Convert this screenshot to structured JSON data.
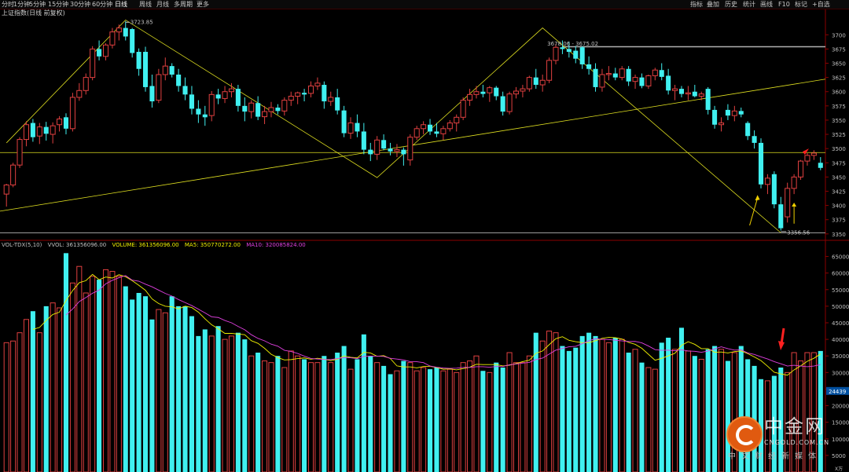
{
  "toolbar": {
    "left_items": [
      "分时",
      "1分钟",
      "5分钟",
      "15分钟",
      "30分钟",
      "60分钟",
      "日线",
      "周线",
      "月线",
      "多周期",
      "更多"
    ],
    "active_item": "日线",
    "right_items": [
      "指标",
      "叠加",
      "历史",
      "统计",
      "画线",
      "F10",
      "标记",
      "+自选"
    ]
  },
  "chart_title": "上证指数(日线 前复权)",
  "colors": {
    "up": "#e04040",
    "down": "#40f0f0",
    "ma5": "#f0f000",
    "ma10": "#e040e0",
    "trendline": "#e0e020",
    "resistance": "#b0b0b0",
    "grid": "#8b0000",
    "axis_text": "#c0c0c0",
    "arrow_red": "#ff2020",
    "arrow_yellow": "#f0d000"
  },
  "price_axis": {
    "ticks": [
      "3700",
      "3675",
      "3650",
      "3625",
      "3600",
      "3575",
      "3550",
      "3525",
      "3500",
      "3475",
      "3450",
      "3425",
      "3400",
      "3375",
      "3350"
    ],
    "range": [
      3347,
      3728
    ]
  },
  "volume_axis": {
    "ticks": [
      "65000",
      "60000",
      "55000",
      "50000",
      "45000",
      "40000",
      "35000",
      "30000",
      "25000",
      "20000",
      "15000",
      "10000",
      "5000"
    ],
    "current_label": "24439",
    "unit": "X万",
    "range": [
      0,
      67500
    ]
  },
  "annotations": {
    "high_left": "3723.85",
    "high_right": "3678.06 - 3675.02",
    "low": "3356.56"
  },
  "volume_header": {
    "indicator": "VOL-TDX(5,10)",
    "vvol": "VVOL: 361356096.00",
    "volume": "VOLUME: 361356096.00",
    "ma5": "MA5: 350770272.00",
    "ma10": "MA10: 320085824.00"
  },
  "watermark": {
    "cn": "中金网",
    "en": "CNGOLD.COM.CN",
    "sub": "中文财经新媒体"
  },
  "chart_data": {
    "type": "candlestick",
    "title": "上证指数(日线 前复权)",
    "ylim": [
      3347,
      3728
    ],
    "volume_ylim": [
      0,
      67500
    ],
    "candles": [
      {
        "o": 3420,
        "h": 3438,
        "l": 3398,
        "c": 3436,
        "v": 39000
      },
      {
        "o": 3436,
        "h": 3475,
        "l": 3432,
        "c": 3471,
        "v": 39500
      },
      {
        "o": 3471,
        "h": 3520,
        "l": 3466,
        "c": 3516,
        "v": 42000
      },
      {
        "o": 3516,
        "h": 3548,
        "l": 3504,
        "c": 3542,
        "v": 46000
      },
      {
        "o": 3545,
        "h": 3552,
        "l": 3512,
        "c": 3520,
        "v": 48500
      },
      {
        "o": 3522,
        "h": 3545,
        "l": 3508,
        "c": 3538,
        "v": 42000
      },
      {
        "o": 3538,
        "h": 3547,
        "l": 3514,
        "c": 3526,
        "v": 50000
      },
      {
        "o": 3525,
        "h": 3546,
        "l": 3509,
        "c": 3540,
        "v": 51000
      },
      {
        "o": 3542,
        "h": 3557,
        "l": 3530,
        "c": 3552,
        "v": 49500
      },
      {
        "o": 3555,
        "h": 3562,
        "l": 3525,
        "c": 3535,
        "v": 66000
      },
      {
        "o": 3535,
        "h": 3598,
        "l": 3530,
        "c": 3590,
        "v": 57000
      },
      {
        "o": 3590,
        "h": 3615,
        "l": 3584,
        "c": 3602,
        "v": 62000
      },
      {
        "o": 3602,
        "h": 3632,
        "l": 3595,
        "c": 3625,
        "v": 54000
      },
      {
        "o": 3625,
        "h": 3680,
        "l": 3620,
        "c": 3675,
        "v": 59000
      },
      {
        "o": 3675,
        "h": 3690,
        "l": 3655,
        "c": 3662,
        "v": 58000
      },
      {
        "o": 3662,
        "h": 3685,
        "l": 3655,
        "c": 3682,
        "v": 61000
      },
      {
        "o": 3682,
        "h": 3712,
        "l": 3676,
        "c": 3705,
        "v": 60500
      },
      {
        "o": 3705,
        "h": 3718,
        "l": 3690,
        "c": 3712,
        "v": 59000
      },
      {
        "o": 3712,
        "h": 3724,
        "l": 3690,
        "c": 3697,
        "v": 56000
      },
      {
        "o": 3710,
        "h": 3712,
        "l": 3660,
        "c": 3668,
        "v": 52000
      },
      {
        "o": 3670,
        "h": 3676,
        "l": 3628,
        "c": 3640,
        "v": 54000
      },
      {
        "o": 3670,
        "h": 3679,
        "l": 3600,
        "c": 3608,
        "v": 53000
      },
      {
        "o": 3610,
        "h": 3630,
        "l": 3572,
        "c": 3583,
        "v": 46000
      },
      {
        "o": 3585,
        "h": 3640,
        "l": 3580,
        "c": 3630,
        "v": 49000
      },
      {
        "o": 3630,
        "h": 3660,
        "l": 3620,
        "c": 3645,
        "v": 48000
      },
      {
        "o": 3645,
        "h": 3650,
        "l": 3625,
        "c": 3630,
        "v": 53000
      },
      {
        "o": 3630,
        "h": 3640,
        "l": 3600,
        "c": 3610,
        "v": 50000
      },
      {
        "o": 3610,
        "h": 3625,
        "l": 3585,
        "c": 3595,
        "v": 50000
      },
      {
        "o": 3595,
        "h": 3610,
        "l": 3560,
        "c": 3570,
        "v": 47000
      },
      {
        "o": 3570,
        "h": 3585,
        "l": 3545,
        "c": 3560,
        "v": 41000
      },
      {
        "o": 3560,
        "h": 3575,
        "l": 3540,
        "c": 3555,
        "v": 43000
      },
      {
        "o": 3558,
        "h": 3601,
        "l": 3548,
        "c": 3595,
        "v": 41000
      },
      {
        "o": 3595,
        "h": 3605,
        "l": 3578,
        "c": 3588,
        "v": 44000
      },
      {
        "o": 3588,
        "h": 3610,
        "l": 3580,
        "c": 3600,
        "v": 40000
      },
      {
        "o": 3600,
        "h": 3615,
        "l": 3590,
        "c": 3605,
        "v": 41000
      },
      {
        "o": 3605,
        "h": 3612,
        "l": 3565,
        "c": 3575,
        "v": 42000
      },
      {
        "o": 3575,
        "h": 3590,
        "l": 3548,
        "c": 3565,
        "v": 40000
      },
      {
        "o": 3565,
        "h": 3585,
        "l": 3553,
        "c": 3580,
        "v": 35000
      },
      {
        "o": 3580,
        "h": 3592,
        "l": 3550,
        "c": 3556,
        "v": 36000
      },
      {
        "o": 3556,
        "h": 3575,
        "l": 3543,
        "c": 3565,
        "v": 33500
      },
      {
        "o": 3565,
        "h": 3582,
        "l": 3555,
        "c": 3572,
        "v": 33000
      },
      {
        "o": 3572,
        "h": 3578,
        "l": 3560,
        "c": 3566,
        "v": 35000
      },
      {
        "o": 3566,
        "h": 3590,
        "l": 3558,
        "c": 3585,
        "v": 31500
      },
      {
        "o": 3585,
        "h": 3600,
        "l": 3575,
        "c": 3592,
        "v": 36500
      },
      {
        "o": 3592,
        "h": 3600,
        "l": 3578,
        "c": 3598,
        "v": 35000
      },
      {
        "o": 3598,
        "h": 3605,
        "l": 3583,
        "c": 3595,
        "v": 34000
      },
      {
        "o": 3597,
        "h": 3618,
        "l": 3590,
        "c": 3610,
        "v": 33000
      },
      {
        "o": 3610,
        "h": 3625,
        "l": 3603,
        "c": 3615,
        "v": 33000
      },
      {
        "o": 3612,
        "h": 3618,
        "l": 3570,
        "c": 3583,
        "v": 35000
      },
      {
        "o": 3583,
        "h": 3600,
        "l": 3575,
        "c": 3590,
        "v": 33000
      },
      {
        "o": 3590,
        "h": 3605,
        "l": 3560,
        "c": 3567,
        "v": 36000
      },
      {
        "o": 3567,
        "h": 3575,
        "l": 3520,
        "c": 3527,
        "v": 38000
      },
      {
        "o": 3527,
        "h": 3555,
        "l": 3517,
        "c": 3545,
        "v": 31000
      },
      {
        "o": 3545,
        "h": 3560,
        "l": 3520,
        "c": 3530,
        "v": 34000
      },
      {
        "o": 3530,
        "h": 3545,
        "l": 3490,
        "c": 3498,
        "v": 41500
      },
      {
        "o": 3498,
        "h": 3510,
        "l": 3478,
        "c": 3490,
        "v": 35000
      },
      {
        "o": 3490,
        "h": 3522,
        "l": 3480,
        "c": 3515,
        "v": 33000
      },
      {
        "o": 3515,
        "h": 3525,
        "l": 3497,
        "c": 3500,
        "v": 32000
      },
      {
        "o": 3500,
        "h": 3510,
        "l": 3488,
        "c": 3495,
        "v": 29500
      },
      {
        "o": 3495,
        "h": 3508,
        "l": 3485,
        "c": 3498,
        "v": 30500
      },
      {
        "o": 3498,
        "h": 3502,
        "l": 3470,
        "c": 3490,
        "v": 33500
      },
      {
        "o": 3480,
        "h": 3525,
        "l": 3470,
        "c": 3520,
        "v": 33000
      },
      {
        "o": 3520,
        "h": 3540,
        "l": 3515,
        "c": 3535,
        "v": 30500
      },
      {
        "o": 3535,
        "h": 3548,
        "l": 3525,
        "c": 3542,
        "v": 31500
      },
      {
        "o": 3542,
        "h": 3552,
        "l": 3524,
        "c": 3530,
        "v": 31000
      },
      {
        "o": 3530,
        "h": 3545,
        "l": 3520,
        "c": 3526,
        "v": 31500
      },
      {
        "o": 3526,
        "h": 3540,
        "l": 3515,
        "c": 3535,
        "v": 30500
      },
      {
        "o": 3535,
        "h": 3550,
        "l": 3530,
        "c": 3545,
        "v": 31000
      },
      {
        "o": 3545,
        "h": 3560,
        "l": 3530,
        "c": 3555,
        "v": 30000
      },
      {
        "o": 3555,
        "h": 3590,
        "l": 3550,
        "c": 3585,
        "v": 33000
      },
      {
        "o": 3585,
        "h": 3605,
        "l": 3575,
        "c": 3595,
        "v": 33500
      },
      {
        "o": 3595,
        "h": 3610,
        "l": 3588,
        "c": 3600,
        "v": 35000
      },
      {
        "o": 3600,
        "h": 3612,
        "l": 3590,
        "c": 3596,
        "v": 30500
      },
      {
        "o": 3598,
        "h": 3610,
        "l": 3582,
        "c": 3607,
        "v": 30000
      },
      {
        "o": 3607,
        "h": 3610,
        "l": 3585,
        "c": 3592,
        "v": 33000
      },
      {
        "o": 3592,
        "h": 3600,
        "l": 3558,
        "c": 3565,
        "v": 31500
      },
      {
        "o": 3565,
        "h": 3600,
        "l": 3560,
        "c": 3596,
        "v": 36000
      },
      {
        "o": 3596,
        "h": 3608,
        "l": 3588,
        "c": 3601,
        "v": 33000
      },
      {
        "o": 3601,
        "h": 3612,
        "l": 3590,
        "c": 3605,
        "v": 33000
      },
      {
        "o": 3605,
        "h": 3628,
        "l": 3600,
        "c": 3625,
        "v": 35000
      },
      {
        "o": 3625,
        "h": 3640,
        "l": 3605,
        "c": 3612,
        "v": 42000
      },
      {
        "o": 3612,
        "h": 3630,
        "l": 3600,
        "c": 3620,
        "v": 39500
      },
      {
        "o": 3620,
        "h": 3660,
        "l": 3615,
        "c": 3655,
        "v": 42500
      },
      {
        "o": 3655,
        "h": 3684,
        "l": 3648,
        "c": 3678,
        "v": 42000
      },
      {
        "o": 3678,
        "h": 3690,
        "l": 3666,
        "c": 3675,
        "v": 38000
      },
      {
        "o": 3675,
        "h": 3688,
        "l": 3660,
        "c": 3670,
        "v": 36500
      },
      {
        "o": 3672,
        "h": 3680,
        "l": 3650,
        "c": 3658,
        "v": 37500
      },
      {
        "o": 3678,
        "h": 3680,
        "l": 3640,
        "c": 3648,
        "v": 41000
      },
      {
        "o": 3648,
        "h": 3662,
        "l": 3630,
        "c": 3640,
        "v": 42000
      },
      {
        "o": 3640,
        "h": 3650,
        "l": 3600,
        "c": 3608,
        "v": 41000
      },
      {
        "o": 3608,
        "h": 3640,
        "l": 3600,
        "c": 3630,
        "v": 40000
      },
      {
        "o": 3630,
        "h": 3645,
        "l": 3620,
        "c": 3632,
        "v": 39000
      },
      {
        "o": 3632,
        "h": 3642,
        "l": 3620,
        "c": 3625,
        "v": 40500
      },
      {
        "o": 3625,
        "h": 3645,
        "l": 3620,
        "c": 3640,
        "v": 40000
      },
      {
        "o": 3640,
        "h": 3645,
        "l": 3610,
        "c": 3618,
        "v": 36000
      },
      {
        "o": 3618,
        "h": 3630,
        "l": 3605,
        "c": 3625,
        "v": 37000
      },
      {
        "o": 3625,
        "h": 3632,
        "l": 3606,
        "c": 3610,
        "v": 33000
      },
      {
        "o": 3610,
        "h": 3630,
        "l": 3605,
        "c": 3628,
        "v": 31500
      },
      {
        "o": 3628,
        "h": 3642,
        "l": 3620,
        "c": 3638,
        "v": 31000
      },
      {
        "o": 3638,
        "h": 3650,
        "l": 3620,
        "c": 3626,
        "v": 39000
      },
      {
        "o": 3628,
        "h": 3640,
        "l": 3595,
        "c": 3602,
        "v": 40500
      },
      {
        "o": 3602,
        "h": 3612,
        "l": 3585,
        "c": 3605,
        "v": 37000
      },
      {
        "o": 3605,
        "h": 3610,
        "l": 3590,
        "c": 3596,
        "v": 43500
      },
      {
        "o": 3596,
        "h": 3610,
        "l": 3585,
        "c": 3598,
        "v": 36500
      },
      {
        "o": 3600,
        "h": 3612,
        "l": 3590,
        "c": 3592,
        "v": 35000
      },
      {
        "o": 3592,
        "h": 3600,
        "l": 3585,
        "c": 3596,
        "v": 34000
      },
      {
        "o": 3605,
        "h": 3608,
        "l": 3560,
        "c": 3568,
        "v": 37000
      },
      {
        "o": 3568,
        "h": 3575,
        "l": 3535,
        "c": 3542,
        "v": 38000
      },
      {
        "o": 3542,
        "h": 3555,
        "l": 3530,
        "c": 3545,
        "v": 37000
      },
      {
        "o": 3568,
        "h": 3578,
        "l": 3550,
        "c": 3558,
        "v": 33500
      },
      {
        "o": 3558,
        "h": 3575,
        "l": 3548,
        "c": 3566,
        "v": 36000
      },
      {
        "o": 3566,
        "h": 3572,
        "l": 3555,
        "c": 3560,
        "v": 38000
      },
      {
        "o": 3545,
        "h": 3548,
        "l": 3515,
        "c": 3522,
        "v": 34000
      },
      {
        "o": 3522,
        "h": 3532,
        "l": 3500,
        "c": 3510,
        "v": 32000
      },
      {
        "o": 3510,
        "h": 3518,
        "l": 3430,
        "c": 3437,
        "v": 28000
      },
      {
        "o": 3437,
        "h": 3455,
        "l": 3420,
        "c": 3448,
        "v": 27500
      },
      {
        "o": 3455,
        "h": 3460,
        "l": 3395,
        "c": 3402,
        "v": 29000
      },
      {
        "o": 3402,
        "h": 3415,
        "l": 3356,
        "c": 3360,
        "v": 31500
      },
      {
        "o": 3380,
        "h": 3440,
        "l": 3370,
        "c": 3430,
        "v": 30000
      },
      {
        "o": 3430,
        "h": 3455,
        "l": 3420,
        "c": 3450,
        "v": 36000
      },
      {
        "o": 3450,
        "h": 3480,
        "l": 3445,
        "c": 3478,
        "v": 33500
      },
      {
        "o": 3478,
        "h": 3492,
        "l": 3470,
        "c": 3488,
        "v": 36000
      },
      {
        "o": 3488,
        "h": 3497,
        "l": 3480,
        "c": 3492,
        "v": 36000
      },
      {
        "o": 3475,
        "h": 3485,
        "l": 3462,
        "c": 3466,
        "v": 36500
      }
    ]
  }
}
